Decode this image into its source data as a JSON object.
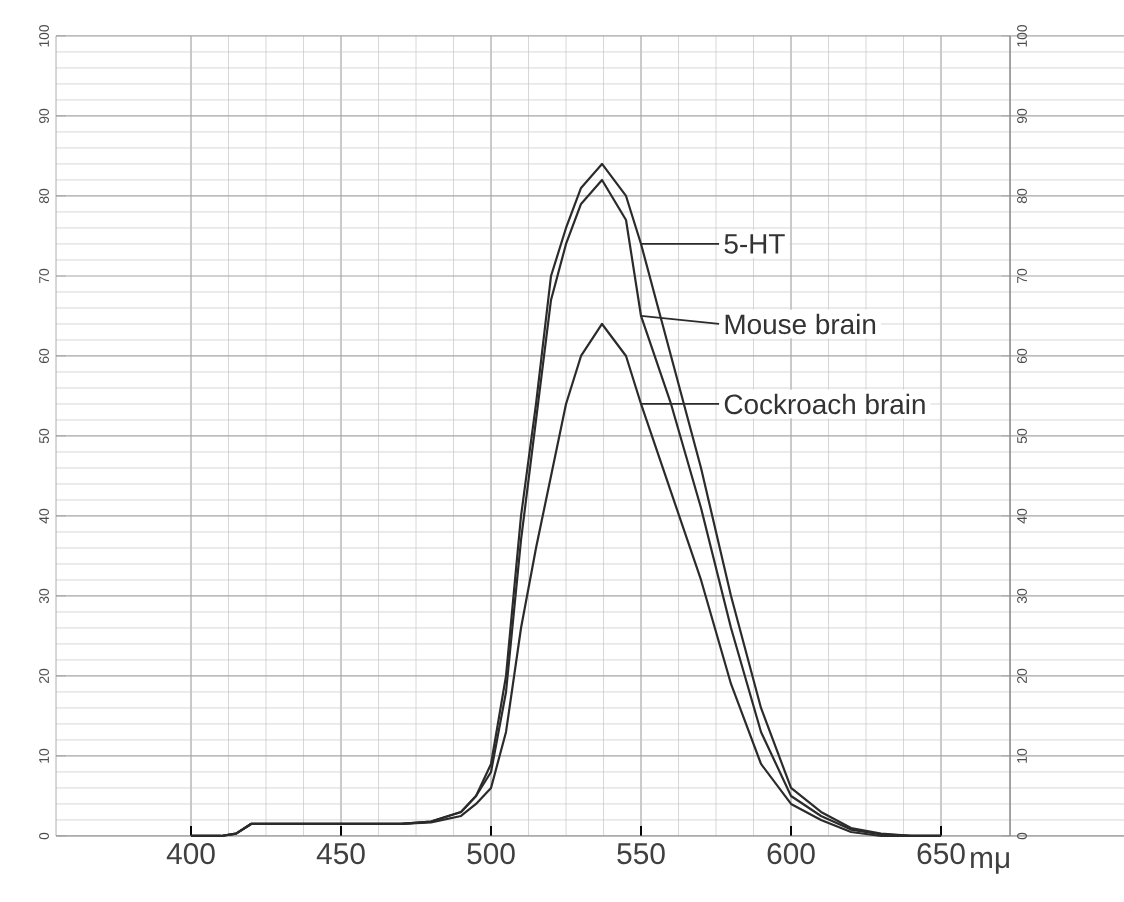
{
  "chart_data": {
    "type": "line",
    "xlabel": "mμ",
    "x": [
      400,
      410,
      415,
      420,
      430,
      450,
      470,
      480,
      490,
      495,
      500,
      505,
      510,
      515,
      520,
      525,
      530,
      537,
      545,
      550,
      560,
      570,
      580,
      590,
      600,
      610,
      620,
      630,
      640,
      650
    ],
    "series": [
      {
        "name": "5-HT",
        "color": "#2b2b2b",
        "values": [
          0,
          0,
          0.3,
          1.5,
          1.5,
          1.5,
          1.5,
          1.8,
          3,
          5,
          9,
          20,
          40,
          54,
          70,
          76,
          81,
          84,
          80,
          74,
          60,
          46,
          30,
          16,
          6,
          3,
          1,
          0.3,
          0,
          0
        ]
      },
      {
        "name": "Mouse brain",
        "color": "#2b2b2b",
        "values": [
          0,
          0,
          0.3,
          1.5,
          1.5,
          1.5,
          1.5,
          1.8,
          3,
          5,
          8,
          18,
          37,
          52,
          67,
          74,
          79,
          82,
          77,
          65,
          54,
          41,
          26,
          13,
          5,
          2.5,
          0.8,
          0.2,
          0,
          0
        ]
      },
      {
        "name": "Cockroach brain",
        "color": "#2b2b2b",
        "values": [
          0,
          0,
          0.3,
          1.5,
          1.5,
          1.5,
          1.5,
          1.7,
          2.5,
          4,
          6,
          13,
          26,
          36,
          45,
          54,
          60,
          64,
          60,
          54,
          43,
          32,
          19,
          9,
          4,
          2,
          0.5,
          0,
          0,
          0
        ]
      }
    ],
    "xlim": [
      355,
      711
    ],
    "xticks": [
      400,
      450,
      500,
      550,
      600,
      650
    ],
    "ylim": [
      0,
      100
    ],
    "yticks": [
      0,
      10,
      20,
      30,
      40,
      50,
      60,
      70,
      80,
      90,
      100
    ],
    "y2lim": [
      0,
      100
    ],
    "y2ticks": [
      0,
      10,
      20,
      30,
      40,
      50,
      60,
      70,
      80,
      90,
      100
    ],
    "grid": true,
    "legend": "right",
    "marker": "none",
    "line_style": "solid"
  }
}
